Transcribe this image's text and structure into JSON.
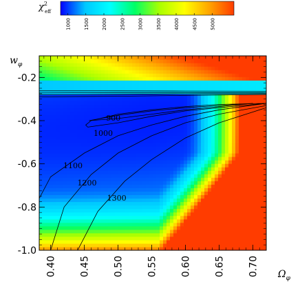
{
  "chart_data": {
    "type": "heatmap",
    "xlabel": "Ω",
    "xlabel_sub": "φ",
    "ylabel": "w",
    "ylabel_sub": "φ",
    "xlim": [
      0.383,
      0.72
    ],
    "ylim": [
      -1.0,
      -0.1
    ],
    "x_ticks": [
      0.4,
      0.45,
      0.5,
      0.55,
      0.6,
      0.65,
      0.7
    ],
    "x_tick_labels": [
      "0.40",
      "0.45",
      "0.50",
      "0.55",
      "0.60",
      "0.65",
      "0.70"
    ],
    "y_ticks": [
      -0.2,
      -0.4,
      -0.6,
      -0.8,
      -1.0
    ],
    "y_tick_labels": [
      "-0.2",
      "-0.4",
      "-0.6",
      "-0.8",
      "-1.0"
    ],
    "colorbar": {
      "label": "χ",
      "label_sup": "2",
      "label_sub": "eff",
      "range": [
        800,
        5600
      ],
      "ticks": [
        1000,
        1500,
        2000,
        2500,
        3000,
        3500,
        4000,
        4500,
        5000
      ],
      "tick_labels": [
        "1000",
        "1500",
        "2000",
        "2500",
        "3000",
        "3500",
        "4000",
        "4500",
        "5000"
      ],
      "colors": [
        "#0000ff",
        "#00c8ff",
        "#00ffff",
        "#00ff66",
        "#aaff00",
        "#ffff00",
        "#ffa500",
        "#ff3c00"
      ]
    },
    "contours": [
      {
        "level": "900",
        "label": "900",
        "points": [
          [
            0.457,
            -0.4
          ],
          [
            0.5,
            -0.39
          ],
          [
            0.55,
            -0.37
          ],
          [
            0.6,
            -0.35
          ],
          [
            0.65,
            -0.335
          ],
          [
            0.7,
            -0.32
          ],
          [
            0.65,
            -0.33
          ],
          [
            0.6,
            -0.34
          ],
          [
            0.55,
            -0.355
          ],
          [
            0.5,
            -0.375
          ],
          [
            0.457,
            -0.4
          ]
        ]
      },
      {
        "level": "1000",
        "label": "1000",
        "points": [
          [
            0.455,
            -0.43
          ],
          [
            0.5,
            -0.41
          ],
          [
            0.55,
            -0.38
          ],
          [
            0.6,
            -0.355
          ],
          [
            0.65,
            -0.34
          ],
          [
            0.72,
            -0.32
          ],
          [
            0.65,
            -0.325
          ],
          [
            0.6,
            -0.335
          ],
          [
            0.55,
            -0.35
          ],
          [
            0.5,
            -0.37
          ],
          [
            0.46,
            -0.4
          ],
          [
            0.452,
            -0.42
          ],
          [
            0.455,
            -0.43
          ]
        ]
      },
      {
        "level": "1100",
        "label": "1100",
        "points": [
          [
            0.383,
            -0.76
          ],
          [
            0.4,
            -0.66
          ],
          [
            0.45,
            -0.55
          ],
          [
            0.5,
            -0.47
          ],
          [
            0.55,
            -0.42
          ],
          [
            0.6,
            -0.38
          ],
          [
            0.65,
            -0.35
          ],
          [
            0.72,
            -0.32
          ]
        ]
      },
      {
        "level": "1200",
        "label": "1200",
        "points": [
          [
            0.4,
            -1.0
          ],
          [
            0.42,
            -0.8
          ],
          [
            0.46,
            -0.65
          ],
          [
            0.5,
            -0.55
          ],
          [
            0.55,
            -0.47
          ],
          [
            0.6,
            -0.41
          ],
          [
            0.65,
            -0.37
          ],
          [
            0.72,
            -0.33
          ]
        ]
      },
      {
        "level": "1300",
        "label": "1300",
        "points": [
          [
            0.44,
            -1.0
          ],
          [
            0.47,
            -0.82
          ],
          [
            0.51,
            -0.68
          ],
          [
            0.55,
            -0.58
          ],
          [
            0.6,
            -0.48
          ],
          [
            0.65,
            -0.41
          ],
          [
            0.72,
            -0.34
          ]
        ]
      },
      {
        "level": "band",
        "label": "",
        "points": [
          [
            0.383,
            -0.262
          ],
          [
            0.5,
            -0.262
          ],
          [
            0.6,
            -0.263
          ],
          [
            0.72,
            -0.264
          ]
        ]
      },
      {
        "level": "band",
        "label": "",
        "points": [
          [
            0.383,
            -0.272
          ],
          [
            0.5,
            -0.27
          ],
          [
            0.6,
            -0.27
          ],
          [
            0.72,
            -0.271
          ]
        ]
      },
      {
        "level": "band",
        "label": "",
        "points": [
          [
            0.383,
            -0.28
          ],
          [
            0.5,
            -0.278
          ],
          [
            0.6,
            -0.276
          ],
          [
            0.72,
            -0.275
          ]
        ]
      },
      {
        "level": "band",
        "label": "",
        "points": [
          [
            0.383,
            -0.29
          ],
          [
            0.5,
            -0.287
          ],
          [
            0.6,
            -0.283
          ],
          [
            0.72,
            -0.279
          ]
        ]
      }
    ],
    "contour_label_positions": {
      "900": [
        0.493,
        -0.4
      ],
      "1000": [
        0.478,
        -0.47
      ],
      "1100": [
        0.433,
        -0.62
      ],
      "1200": [
        0.454,
        -0.7
      ],
      "1300": [
        0.498,
        -0.77
      ]
    },
    "grid": false,
    "legend": "colorbar-top"
  }
}
